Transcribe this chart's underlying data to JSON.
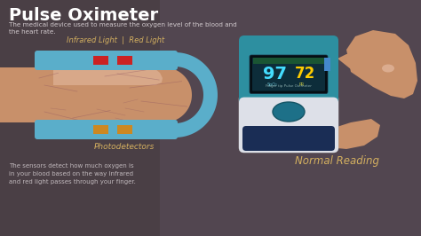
{
  "title": "Pulse Oximeter",
  "subtitle": "The medical device used to measure the oxygen level of the blood and\nthe heart rate.",
  "bottom_text": "The sensors detect how much oxygen is\nin your blood based on the way Infrared\nand red light passes through your finger.",
  "label_ir_red": "Infrared Light  |  Red Light",
  "label_photo": "Photodetectors",
  "label_normal": "Normal Reading",
  "bg_left": "#4a3f45",
  "bg_right": "#5a4e55",
  "title_color": "#ffffff",
  "subtitle_color": "#d0c8cc",
  "label_color": "#d4b060",
  "text_color": "#c0b8bc",
  "blue_color": "#5aaeca",
  "red_block": "#cc2222",
  "orange_block": "#cc8822",
  "num97_color": "#44ddff",
  "num72_color": "#ffcc00",
  "device_teal": "#2d8fa0",
  "device_white": "#dde0e8",
  "device_dark_blue": "#1a2d55",
  "device_oval": "#1d7088",
  "screen_bg": "#0a1a22",
  "screen_green": "#2a6644",
  "skin_color": "#c8906a",
  "skin_dark": "#b07855",
  "vein_color": "#8a5060",
  "finger_nail": "#e8c0a8"
}
